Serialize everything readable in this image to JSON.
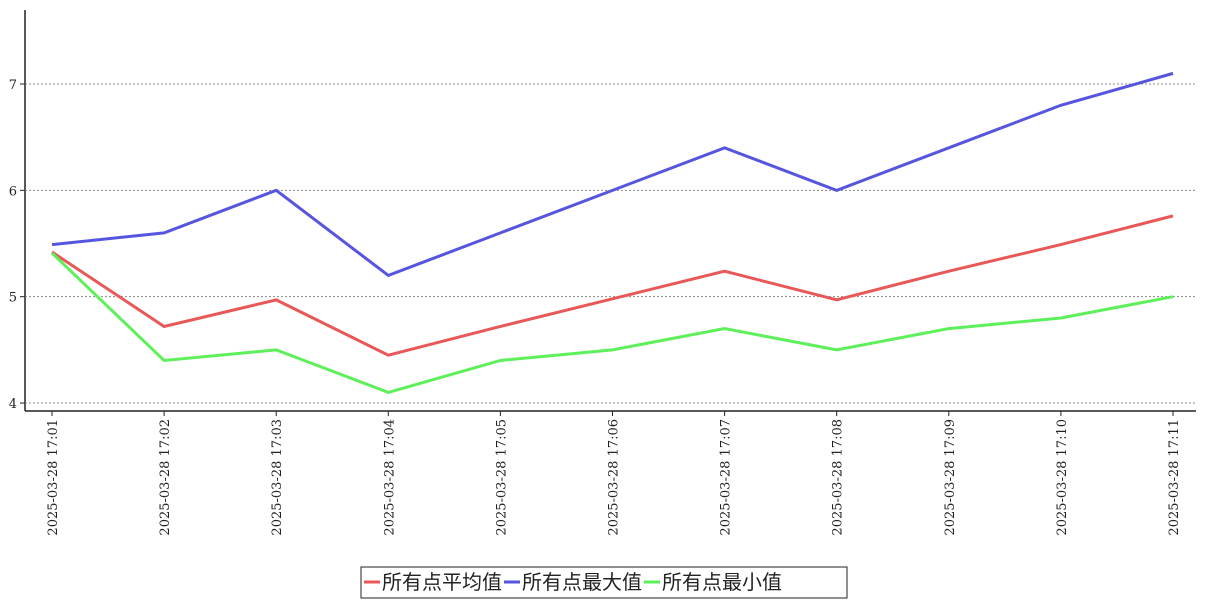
{
  "chart_data": {
    "type": "line",
    "categories": [
      "2025-03-28 17:01",
      "2025-03-28 17:02",
      "2025-03-28 17:03",
      "2025-03-28 17:04",
      "2025-03-28 17:05",
      "2025-03-28 17:06",
      "2025-03-28 17:07",
      "2025-03-28 17:08",
      "2025-03-28 17:09",
      "2025-03-28 17:10",
      "2025-03-28 17:11"
    ],
    "series": [
      {
        "name": "所有点平均值",
        "color": "#e85858",
        "values": [
          5.42,
          4.72,
          4.97,
          4.45,
          4.72,
          4.98,
          5.24,
          4.97,
          5.24,
          5.49,
          5.76
        ]
      },
      {
        "name": "所有点最大值",
        "color": "#5555e0",
        "values": [
          5.49,
          5.6,
          6.0,
          5.2,
          5.6,
          6.0,
          6.4,
          6.0,
          6.4,
          6.8,
          7.1
        ]
      },
      {
        "name": "所有点最小值",
        "color": "#5ef05a",
        "values": [
          5.41,
          4.4,
          4.5,
          4.1,
          4.4,
          4.5,
          4.7,
          4.5,
          4.7,
          4.8,
          5.0
        ]
      }
    ],
    "ylim": [
      3.925,
      7.696
    ],
    "yticks": [
      4,
      5,
      6,
      7
    ],
    "grid": true
  }
}
